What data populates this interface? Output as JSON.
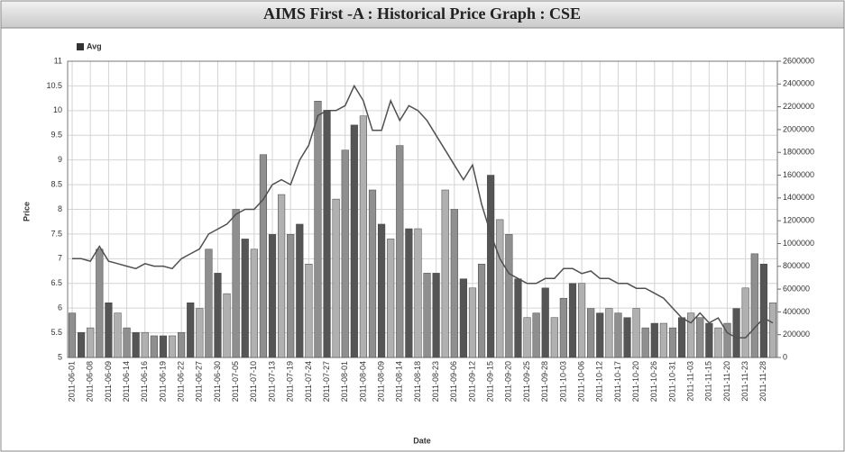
{
  "chart_data": {
    "type": "bar-line",
    "title": "AIMS First  -A : Historical Price Graph : CSE",
    "x_label": "Date",
    "y_label": "Price",
    "categories": [
      "2011-06-01",
      null,
      "2011-06-08",
      null,
      "2011-06-09",
      null,
      "2011-06-14",
      null,
      "2011-06-16",
      null,
      "2011-06-19",
      null,
      "2011-06-22",
      null,
      "2011-06-27",
      null,
      "2011-06-30",
      null,
      "2011-07-05",
      null,
      "2011-07-10",
      null,
      "2011-07-13",
      null,
      "2011-07-19",
      null,
      "2011-07-24",
      null,
      "2011-07-27",
      null,
      "2011-08-01",
      null,
      "2011-08-04",
      null,
      "2011-08-09",
      null,
      "2011-08-14",
      null,
      "2011-08-18",
      null,
      "2011-08-23",
      null,
      "2011-09-06",
      null,
      "2011-09-12",
      null,
      "2011-09-15",
      null,
      "2011-09-20",
      null,
      "2011-09-25",
      null,
      "2011-09-28",
      null,
      "2011-10-03",
      null,
      "2011-10-06",
      null,
      "2011-10-12",
      null,
      "2011-10-17",
      null,
      "2011-10-20",
      null,
      "2011-10-26",
      null,
      "2011-10-31",
      null,
      "2011-11-03",
      null,
      "2011-11-15",
      null,
      "2011-11-20",
      null,
      "2011-11-23",
      null,
      "2011-11-28",
      null
    ],
    "series": [
      {
        "name": "Avg",
        "kind": "bar",
        "axis": "y2",
        "color": "#8f8f8f",
        "values": [
          390000,
          220000,
          260000,
          950000,
          480000,
          390000,
          260000,
          220000,
          220000,
          190000,
          190000,
          190000,
          220000,
          480000,
          430000,
          950000,
          740000,
          560000,
          1300000,
          1040000,
          950000,
          1780000,
          1080000,
          1430000,
          1080000,
          1170000,
          820000,
          2250000,
          2170000,
          1390000,
          1820000,
          2040000,
          2120000,
          1470000,
          1170000,
          1040000,
          1860000,
          1130000,
          1130000,
          740000,
          740000,
          1470000,
          1300000,
          690000,
          610000,
          820000,
          1600000,
          1210000,
          1080000,
          690000,
          350000,
          390000,
          610000,
          350000,
          520000,
          650000,
          650000,
          430000,
          390000,
          430000,
          390000,
          350000,
          430000,
          260000,
          300000,
          300000,
          260000,
          350000,
          390000,
          350000,
          300000,
          260000,
          300000,
          430000,
          610000,
          910000,
          820000,
          480000
        ]
      },
      {
        "kind": "line",
        "axis": "y",
        "color": "#505050",
        "values": [
          7.0,
          7.0,
          6.95,
          7.25,
          6.95,
          6.9,
          6.85,
          6.8,
          6.9,
          6.85,
          6.85,
          6.8,
          7.0,
          7.1,
          7.2,
          7.5,
          7.6,
          7.7,
          7.9,
          8.0,
          8.0,
          8.2,
          8.5,
          8.6,
          8.5,
          9.0,
          9.3,
          9.9,
          10.0,
          10.0,
          10.1,
          10.5,
          10.2,
          9.6,
          9.6,
          10.2,
          9.8,
          10.1,
          10.0,
          9.8,
          9.5,
          9.2,
          8.9,
          8.6,
          8.9,
          8.1,
          7.5,
          7.0,
          6.7,
          6.6,
          6.5,
          6.5,
          6.6,
          6.6,
          6.8,
          6.8,
          6.7,
          6.75,
          6.6,
          6.6,
          6.5,
          6.5,
          6.4,
          6.4,
          6.3,
          6.2,
          6.0,
          5.8,
          5.7,
          5.9,
          5.7,
          5.8,
          5.5,
          5.4,
          5.4,
          5.6,
          5.8,
          5.7
        ]
      }
    ],
    "ylim": [
      5,
      11
    ],
    "yticks": [
      5,
      5.5,
      6,
      6.5,
      7,
      7.5,
      8,
      8.5,
      9,
      9.5,
      10,
      10.5,
      11
    ],
    "y2lim": [
      0,
      2600000
    ],
    "y2ticks": [
      0,
      200000,
      400000,
      600000,
      800000,
      1000000,
      1200000,
      1400000,
      1600000,
      1800000,
      2000000,
      2200000,
      2400000,
      2600000
    ],
    "grid": true,
    "legend": "top-left"
  }
}
